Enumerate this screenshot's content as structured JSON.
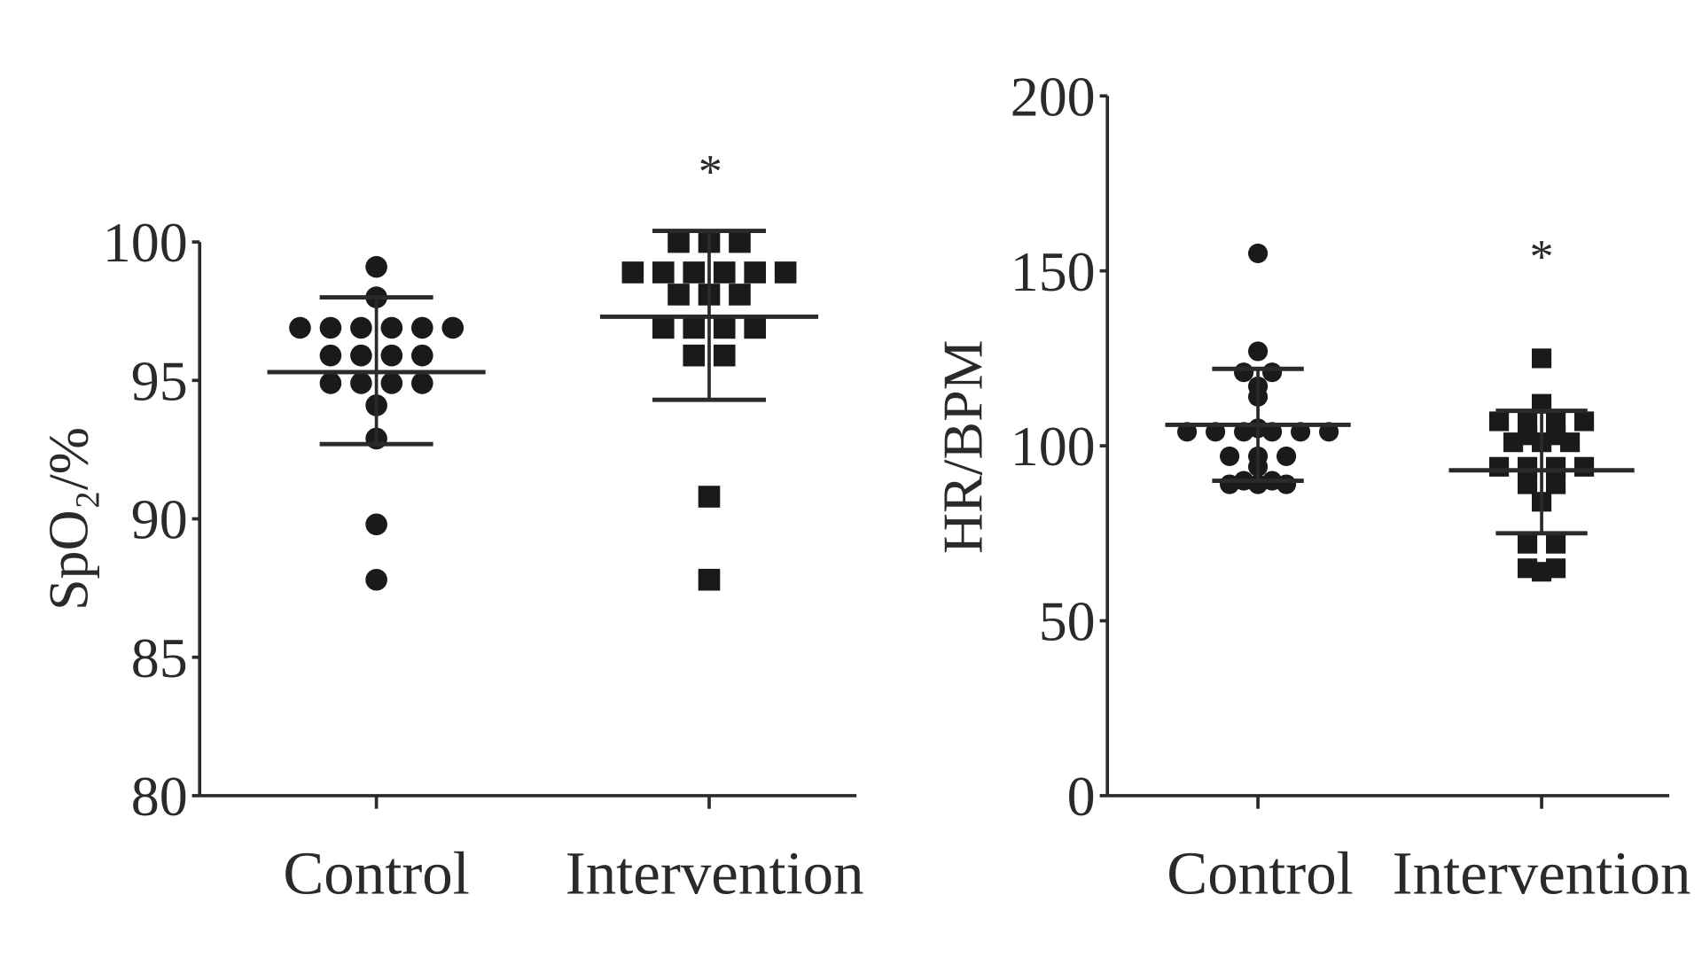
{
  "chart_data": [
    {
      "type": "scatter",
      "title": "",
      "xlabel": "",
      "ylabel": "SpO₂/%",
      "ylim": [
        80,
        100
      ],
      "yticks": [
        80,
        85,
        90,
        95,
        100
      ],
      "grid": false,
      "categories": [
        "Control",
        "Intervention"
      ],
      "series": [
        {
          "category": "Control",
          "marker": "circle",
          "values": [
            99.1,
            98.0,
            96.9,
            96.9,
            96.9,
            96.9,
            96.9,
            96.9,
            95.9,
            95.9,
            95.9,
            95.9,
            94.9,
            94.9,
            94.9,
            94.9,
            94.1,
            92.9,
            89.8,
            87.8
          ],
          "mean": 95.3,
          "sd_upper": 98.0,
          "sd_lower": 92.7
        },
        {
          "category": "Intervention",
          "marker": "square",
          "values": [
            100.0,
            100.0,
            100.0,
            98.9,
            98.9,
            98.9,
            98.9,
            98.9,
            98.9,
            98.1,
            98.1,
            98.1,
            96.9,
            96.9,
            96.9,
            96.9,
            95.9,
            95.9,
            90.8,
            87.8
          ],
          "mean": 97.3,
          "sd_upper": 100.4,
          "sd_lower": 94.3,
          "annotation": "*"
        }
      ]
    },
    {
      "type": "scatter",
      "title": "",
      "xlabel": "",
      "ylabel": "HR/BPM",
      "ylim": [
        0,
        200
      ],
      "yticks": [
        0,
        50,
        100,
        150,
        200
      ],
      "grid": false,
      "categories": [
        "Control",
        "Intervention"
      ],
      "series": [
        {
          "category": "Control",
          "marker": "circle",
          "values": [
            155,
            127,
            121,
            121,
            117,
            114,
            105,
            104,
            104,
            104,
            104,
            104,
            104,
            97,
            97,
            97,
            94,
            90,
            89,
            89,
            89,
            90
          ],
          "mean": 106,
          "sd_upper": 122,
          "sd_lower": 90
        },
        {
          "category": "Intervention",
          "marker": "square",
          "values": [
            125,
            112,
            107,
            107,
            107,
            107,
            103,
            103,
            101,
            101,
            101,
            94,
            94,
            94,
            94,
            89,
            89,
            84,
            72,
            72,
            65,
            65,
            64
          ],
          "mean": 93,
          "sd_upper": 110,
          "sd_lower": 75,
          "annotation": "*"
        }
      ]
    }
  ]
}
